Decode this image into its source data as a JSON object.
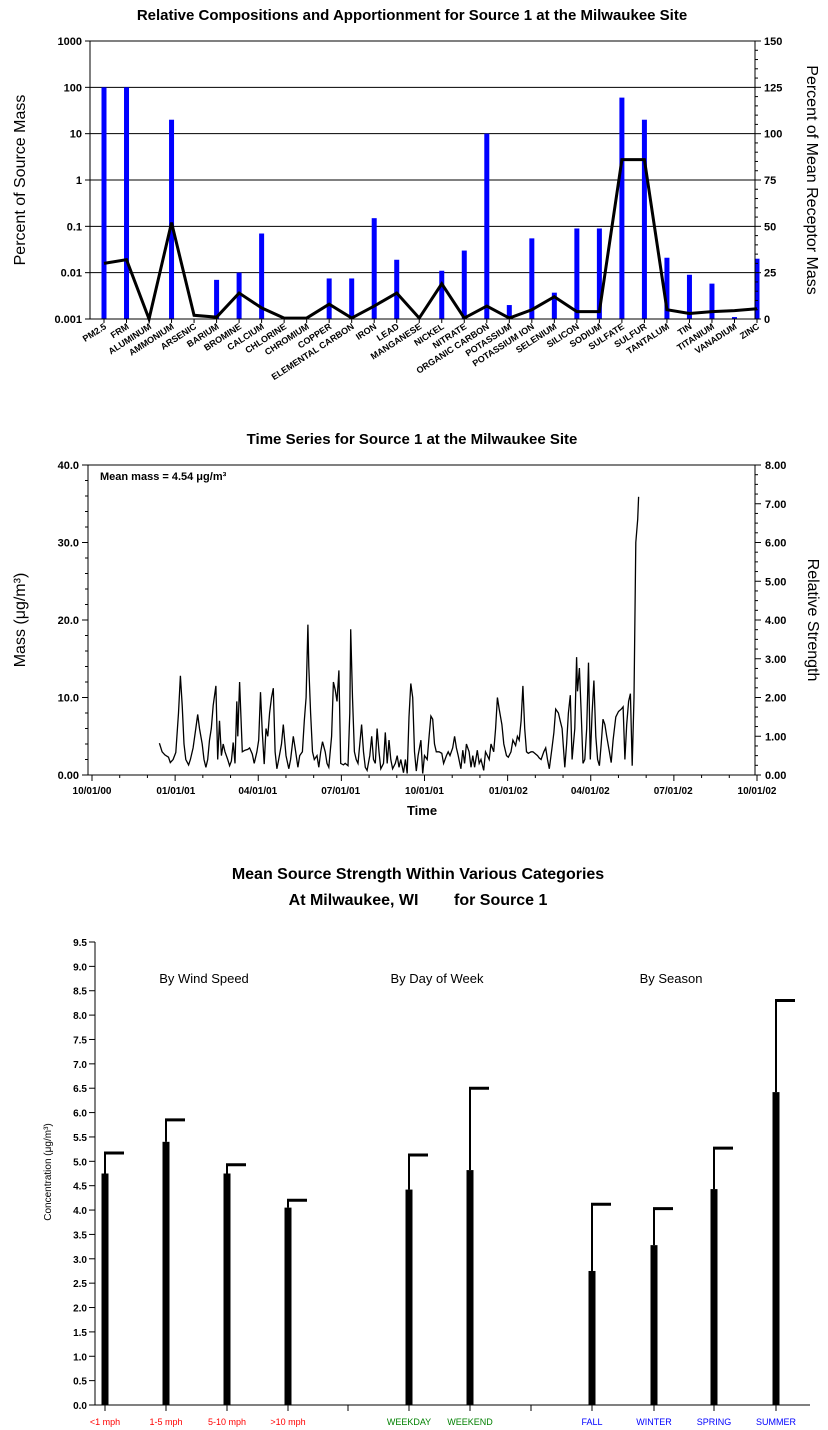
{
  "chart_data": [
    {
      "type": "bar",
      "title": "Relative Compositions and Apportionment for Source 1 at the Milwaukee Site",
      "ylabel": "Percent of Source Mass",
      "y2label": "Percent of Mean Receptor Mass",
      "y_scale": "log",
      "ylim": [
        0.001,
        1000
      ],
      "y_ticks": [
        "0.001",
        "0.01",
        "0.1",
        "1",
        "10",
        "100",
        "1000"
      ],
      "y2lim": [
        0,
        150
      ],
      "y2_ticks": [
        "0",
        "25",
        "50",
        "75",
        "100",
        "125",
        "150"
      ],
      "bar_color": "#0000ff",
      "line_color": "#000000",
      "grid": "horizontal",
      "categories": [
        "PM2.5",
        "FRM",
        "ALUMINUM",
        "AMMONIUM",
        "ARSENIC",
        "BARIUM",
        "BROMINE",
        "CALCIUM",
        "CHLORINE",
        "CHROMIUM",
        "COPPER",
        "ELEMENTAL CARBON",
        "IRON",
        "LEAD",
        "MANGANESE",
        "NICKEL",
        "NITRATE",
        "ORGANIC CARBON",
        "POTASSIUM",
        "POTASSIUM ION",
        "SELENIUM",
        "SILICON",
        "SODIUM",
        "SULFATE",
        "SULFUR",
        "TANTALUM",
        "TIN",
        "TITANIUM",
        "VANADIUM",
        "ZINC"
      ],
      "series": [
        {
          "name": "Percent of Source Mass",
          "axis": "left",
          "values": [
            100,
            100,
            0.001,
            20,
            0.001,
            0.007,
            0.01,
            0.07,
            0.001,
            0.001,
            0.0075,
            0.0075,
            0.15,
            0.019,
            0.001,
            0.011,
            0.03,
            10,
            0.002,
            0.055,
            0.0037,
            0.09,
            0.09,
            60,
            20,
            0.021,
            0.009,
            0.0058,
            0.0011,
            0.02
          ]
        },
        {
          "name": "Percent of Mean Receptor Mass",
          "axis": "right",
          "values": [
            30,
            32,
            0,
            52,
            2,
            1,
            14,
            6,
            0.5,
            0.5,
            8,
            0.5,
            7,
            14,
            0.5,
            19,
            0.5,
            7,
            0.5,
            5,
            12,
            4,
            4,
            86,
            86,
            5,
            3,
            4,
            4.5,
            5.5
          ]
        }
      ]
    },
    {
      "type": "line",
      "title": "Time Series for Source 1 at the Milwaukee Site",
      "annotation": "Mean mass = 4.54 μg/m³",
      "xlabel": "Time",
      "ylabel": "Mass (μg/m³)",
      "y2label": "Relative Strength",
      "x_start": "10/01/00",
      "x_ticks": [
        "10/01/00",
        "01/01/01",
        "04/01/01",
        "07/01/01",
        "10/01/01",
        "01/01/02",
        "04/01/02",
        "07/01/02",
        "10/01/02"
      ],
      "ylim": [
        0,
        40
      ],
      "y_ticks": [
        "0.00",
        "10.0",
        "20.0",
        "30.0",
        "40.0"
      ],
      "y2lim": [
        0,
        8
      ],
      "y2_ticks": [
        "0.00",
        "1.00",
        "2.00",
        "3.00",
        "4.00",
        "5.00",
        "6.00",
        "7.00",
        "8.00"
      ],
      "x_unit": "days after 10/01/00",
      "points": [
        [
          74,
          4.1
        ],
        [
          77,
          3.0
        ],
        [
          80,
          2.6
        ],
        [
          84,
          2.3
        ],
        [
          86,
          1.6
        ],
        [
          89,
          2.0
        ],
        [
          92,
          2.9
        ],
        [
          95,
          8.0
        ],
        [
          97,
          12.8
        ],
        [
          99,
          9.0
        ],
        [
          101,
          4.0
        ],
        [
          103,
          2.0
        ],
        [
          106,
          1.3
        ],
        [
          108,
          2.0
        ],
        [
          111,
          3.5
        ],
        [
          114,
          6.0
        ],
        [
          116,
          7.8
        ],
        [
          118,
          6.0
        ],
        [
          121,
          4.0
        ],
        [
          123,
          2.0
        ],
        [
          125,
          1.0
        ],
        [
          127,
          2.0
        ],
        [
          129,
          4.5
        ],
        [
          131,
          6.0
        ],
        [
          133,
          9.0
        ],
        [
          136,
          11.5
        ],
        [
          138,
          2.0
        ],
        [
          140,
          7.0
        ],
        [
          142,
          2.5
        ],
        [
          144,
          4.0
        ],
        [
          146,
          3.0
        ],
        [
          149,
          2.0
        ],
        [
          151,
          1.2
        ],
        [
          153,
          1.8
        ],
        [
          155,
          4.2
        ],
        [
          157,
          1.5
        ],
        [
          159,
          9.5
        ],
        [
          160,
          5.0
        ],
        [
          162,
          12.0
        ],
        [
          165,
          3.0
        ],
        [
          168,
          3.2
        ],
        [
          171,
          3.3
        ],
        [
          173,
          3.5
        ],
        [
          176,
          2.7
        ],
        [
          178,
          1.5
        ],
        [
          181,
          3.0
        ],
        [
          183,
          4.5
        ],
        [
          185,
          10.7
        ],
        [
          187,
          5.5
        ],
        [
          189,
          1.4
        ],
        [
          191,
          6.0
        ],
        [
          193,
          5.0
        ],
        [
          195,
          8.0
        ],
        [
          197,
          10.0
        ],
        [
          199,
          11.2
        ],
        [
          201,
          3.0
        ],
        [
          203,
          0.8
        ],
        [
          205,
          2.0
        ],
        [
          208,
          4.0
        ],
        [
          210,
          6.5
        ],
        [
          213,
          2.5
        ],
        [
          216,
          0.8
        ],
        [
          218,
          2.0
        ],
        [
          221,
          5.0
        ],
        [
          223,
          3.5
        ],
        [
          226,
          1.0
        ],
        [
          228,
          2.5
        ],
        [
          231,
          3.0
        ],
        [
          233,
          7.0
        ],
        [
          235,
          10.0
        ],
        [
          237,
          19.4
        ],
        [
          238,
          14.0
        ],
        [
          240,
          8.0
        ],
        [
          242,
          3.0
        ],
        [
          244,
          2.0
        ],
        [
          247,
          2.5
        ],
        [
          249,
          1.0
        ],
        [
          251,
          3.0
        ],
        [
          253,
          4.3
        ],
        [
          256,
          3.0
        ],
        [
          258,
          1.5
        ],
        [
          260,
          1.0
        ],
        [
          263,
          5.0
        ],
        [
          265,
          12.0
        ],
        [
          267,
          11.0
        ],
        [
          269,
          9.5
        ],
        [
          271,
          13.5
        ],
        [
          273,
          1.5
        ],
        [
          276,
          1.3
        ],
        [
          278,
          1.5
        ],
        [
          281,
          1.2
        ],
        [
          283,
          8.0
        ],
        [
          284,
          18.8
        ],
        [
          286,
          10.0
        ],
        [
          288,
          3.0
        ],
        [
          290,
          2.0
        ],
        [
          292,
          1.5
        ],
        [
          294,
          4.0
        ],
        [
          296,
          6.5
        ],
        [
          298,
          3.0
        ],
        [
          300,
          1.0
        ],
        [
          302,
          0.6
        ],
        [
          305,
          2.5
        ],
        [
          307,
          5.0
        ],
        [
          309,
          2.0
        ],
        [
          311,
          1.5
        ],
        [
          313,
          6.0
        ],
        [
          315,
          3.0
        ],
        [
          317,
          0.8
        ],
        [
          320,
          1.5
        ],
        [
          322,
          5.5
        ],
        [
          324,
          1.5
        ],
        [
          326,
          4.5
        ],
        [
          328,
          2.0
        ],
        [
          330,
          0.8
        ],
        [
          333,
          1.5
        ],
        [
          335,
          2.5
        ],
        [
          337,
          1.0
        ],
        [
          339,
          2.0
        ],
        [
          342,
          0.3
        ],
        [
          344,
          2.0
        ],
        [
          346,
          0.2
        ],
        [
          348,
          7.5
        ],
        [
          350,
          11.8
        ],
        [
          352,
          10.0
        ],
        [
          354,
          3.0
        ],
        [
          356,
          0.5
        ],
        [
          358,
          2.5
        ],
        [
          361,
          4.5
        ],
        [
          363,
          0.2
        ],
        [
          365,
          2.5
        ],
        [
          368,
          2.0
        ],
        [
          370,
          5.0
        ],
        [
          372,
          7.6
        ],
        [
          374,
          7.2
        ],
        [
          376,
          4.0
        ],
        [
          378,
          3.0
        ],
        [
          381,
          3.0
        ],
        [
          384,
          2.8
        ],
        [
          386,
          1.5
        ],
        [
          389,
          2.5
        ],
        [
          391,
          3.0
        ],
        [
          393,
          2.5
        ],
        [
          396,
          3.5
        ],
        [
          398,
          5.0
        ],
        [
          400,
          3.5
        ],
        [
          402,
          2.5
        ],
        [
          405,
          0.8
        ],
        [
          407,
          3.2
        ],
        [
          409,
          1.5
        ],
        [
          411,
          4.0
        ],
        [
          414,
          3.0
        ],
        [
          416,
          1.0
        ],
        [
          418,
          2.5
        ],
        [
          420,
          1.0
        ],
        [
          423,
          3.2
        ],
        [
          425,
          1.5
        ],
        [
          427,
          2.0
        ],
        [
          430,
          0.6
        ],
        [
          432,
          3.0
        ],
        [
          434,
          2.5
        ],
        [
          436,
          2.0
        ],
        [
          438,
          4.0
        ],
        [
          441,
          3.0
        ],
        [
          443,
          6.0
        ],
        [
          445,
          10.0
        ],
        [
          447,
          8.5
        ],
        [
          450,
          6.5
        ],
        [
          452,
          4.0
        ],
        [
          455,
          2.5
        ],
        [
          457,
          2.3
        ],
        [
          460,
          3.0
        ],
        [
          462,
          4.5
        ],
        [
          465,
          3.8
        ],
        [
          467,
          5.0
        ],
        [
          469,
          4.5
        ],
        [
          471,
          7.0
        ],
        [
          473,
          11.5
        ],
        [
          475,
          6.0
        ],
        [
          477,
          3.0
        ],
        [
          479,
          2.8
        ],
        [
          482,
          3.0
        ],
        [
          484,
          3.0
        ],
        [
          486,
          2.8
        ],
        [
          489,
          2.5
        ],
        [
          491,
          2.2
        ],
        [
          493,
          2.0
        ],
        [
          496,
          3.0
        ],
        [
          498,
          3.5
        ],
        [
          500,
          2.0
        ],
        [
          502,
          0.8
        ],
        [
          505,
          3.5
        ],
        [
          507,
          5.5
        ],
        [
          509,
          8.5
        ],
        [
          512,
          8.0
        ],
        [
          514,
          7.0
        ],
        [
          516,
          6.0
        ],
        [
          519,
          1.0
        ],
        [
          521,
          4.0
        ],
        [
          523,
          8.0
        ],
        [
          525,
          10.3
        ],
        [
          527,
          2.0
        ],
        [
          530,
          6.0
        ],
        [
          532,
          15.2
        ],
        [
          533,
          10.8
        ],
        [
          535,
          13.8
        ],
        [
          537,
          8.0
        ],
        [
          539,
          1.5
        ],
        [
          541,
          2.0
        ],
        [
          543,
          6.0
        ],
        [
          545,
          14.5
        ],
        [
          547,
          2.0
        ],
        [
          549,
          8.0
        ],
        [
          551,
          12.2
        ],
        [
          553,
          5.0
        ],
        [
          555,
          2.0
        ],
        [
          557,
          1.2
        ],
        [
          559,
          4.0
        ],
        [
          561,
          7.2
        ],
        [
          563,
          6.5
        ],
        [
          565,
          5.0
        ],
        [
          568,
          3.0
        ],
        [
          570,
          1.6
        ],
        [
          572,
          4.5
        ],
        [
          575,
          7.5
        ],
        [
          578,
          8.2
        ],
        [
          581,
          8.5
        ],
        [
          583,
          8.8
        ],
        [
          585,
          2.0
        ],
        [
          587,
          6.5
        ],
        [
          589,
          9.5
        ],
        [
          591,
          10.5
        ],
        [
          593,
          1.2
        ],
        [
          595,
          10.0
        ],
        [
          597,
          30.0
        ],
        [
          599,
          33.0
        ],
        [
          600,
          35.9
        ]
      ]
    },
    {
      "type": "bar",
      "title": "Mean Source Strength Within Various Categories",
      "subtitle": "At Milwaukee, WI        for Source 1",
      "ylabel": "Concentration (μg/m³)",
      "ylim": [
        0,
        9.5
      ],
      "y_ticks": [
        "0.0",
        "0.5",
        "1.0",
        "1.5",
        "2.0",
        "2.5",
        "3.0",
        "3.5",
        "4.0",
        "4.5",
        "5.0",
        "5.5",
        "6.0",
        "6.5",
        "7.0",
        "7.5",
        "8.0",
        "8.5",
        "9.0",
        "9.5"
      ],
      "groups": [
        {
          "label": "By Wind Speed",
          "color": "#ff0000",
          "categories": [
            "<1 mph",
            "1-5 mph",
            "5-10 mph",
            ">10 mph"
          ],
          "values": [
            4.75,
            5.4,
            4.75,
            4.05
          ],
          "upper": [
            5.17,
            5.85,
            4.93,
            4.2
          ]
        },
        {
          "label": "By Day of Week",
          "color": "#008000",
          "categories": [
            "WEEKDAY",
            "WEEKEND"
          ],
          "values": [
            4.42,
            4.82
          ],
          "upper": [
            5.13,
            6.5
          ]
        },
        {
          "label": "By Season",
          "color": "#0000ff",
          "categories": [
            "FALL",
            "WINTER",
            "SPRING",
            "SUMMER"
          ],
          "values": [
            2.75,
            3.28,
            4.43,
            6.42
          ],
          "upper": [
            4.12,
            4.03,
            5.27,
            8.3
          ]
        }
      ]
    }
  ]
}
